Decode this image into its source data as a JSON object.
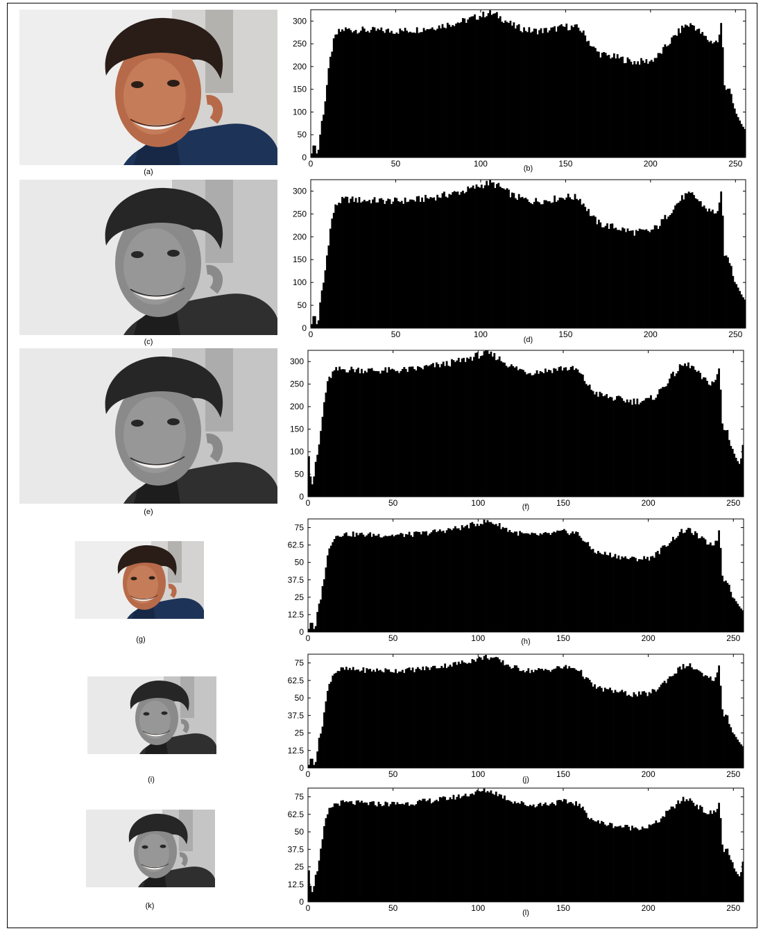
{
  "figure": {
    "panels": [
      {
        "image_label": "(a)",
        "hist_label": "(b)",
        "image_tone": "color"
      },
      {
        "image_label": "(c)",
        "hist_label": "(d)",
        "image_tone": "gray"
      },
      {
        "image_label": "(e)",
        "hist_label": "(f)",
        "image_tone": "gray"
      },
      {
        "image_label": "(g)",
        "hist_label": "(h)",
        "image_tone": "color"
      },
      {
        "image_label": "(i)",
        "hist_label": "(j)",
        "image_tone": "gray"
      },
      {
        "image_label": "(k)",
        "hist_label": "(l)",
        "image_tone": "gray"
      }
    ],
    "colors": {
      "bars": "#000000",
      "background": "#ffffff",
      "shirt": "#1e3358",
      "skin": "#b76a49",
      "hair": "#2a1d17"
    }
  },
  "chart_data": [
    {
      "type": "bar",
      "title": "(b)",
      "xlim": [
        0,
        256
      ],
      "ylim": [
        0,
        325
      ],
      "xticks": [
        "0",
        "50",
        "100",
        "150",
        "200",
        "250"
      ],
      "yticks": [
        "0",
        "50",
        "100",
        "150",
        "200",
        "250",
        "300"
      ],
      "grid": false,
      "profile": {
        "x": [
          0,
          2,
          4,
          6,
          8,
          10,
          12,
          14,
          16,
          20,
          30,
          40,
          50,
          60,
          70,
          80,
          90,
          100,
          105,
          110,
          115,
          120,
          130,
          140,
          150,
          158,
          162,
          166,
          170,
          180,
          190,
          200,
          205,
          210,
          215,
          220,
          225,
          230,
          235,
          240,
          242,
          243,
          244,
          246,
          248,
          250,
          252,
          254,
          256
        ],
        "y": [
          0,
          35,
          0,
          68,
          110,
          175,
          230,
          262,
          275,
          282,
          280,
          279,
          278,
          280,
          285,
          292,
          300,
          312,
          318,
          312,
          300,
          288,
          278,
          280,
          288,
          285,
          265,
          242,
          228,
          220,
          210,
          212,
          225,
          248,
          270,
          290,
          292,
          272,
          255,
          255,
          305,
          180,
          150,
          155,
          125,
          100,
          85,
          70,
          60
        ]
      }
    },
    {
      "type": "bar",
      "title": "(d)",
      "xlim": [
        0,
        256
      ],
      "ylim": [
        0,
        325
      ],
      "xticks": [
        "0",
        "50",
        "100",
        "150",
        "200",
        "250"
      ],
      "yticks": [
        "0",
        "50",
        "100",
        "150",
        "200",
        "250",
        "300"
      ],
      "grid": false,
      "profile": {
        "x": [
          0,
          2,
          4,
          6,
          8,
          10,
          12,
          14,
          16,
          20,
          30,
          40,
          50,
          60,
          70,
          80,
          90,
          100,
          105,
          110,
          115,
          120,
          130,
          140,
          150,
          158,
          162,
          166,
          170,
          180,
          190,
          200,
          205,
          210,
          215,
          220,
          225,
          230,
          235,
          240,
          242,
          243,
          244,
          246,
          248,
          250,
          252,
          254,
          256
        ],
        "y": [
          0,
          35,
          0,
          68,
          110,
          175,
          230,
          262,
          275,
          282,
          280,
          279,
          278,
          280,
          285,
          292,
          300,
          312,
          318,
          312,
          300,
          288,
          278,
          280,
          288,
          285,
          265,
          242,
          228,
          220,
          210,
          212,
          225,
          248,
          270,
          290,
          292,
          272,
          255,
          255,
          305,
          180,
          150,
          155,
          125,
          100,
          85,
          70,
          60
        ]
      }
    },
    {
      "type": "bar",
      "title": "(f)",
      "xlim": [
        0,
        256
      ],
      "ylim": [
        0,
        325
      ],
      "xticks": [
        "0",
        "50",
        "100",
        "150",
        "200",
        "250"
      ],
      "yticks": [
        "0",
        "50",
        "100",
        "150",
        "200",
        "250",
        "300"
      ],
      "grid": false,
      "profile": {
        "x": [
          0,
          1,
          2,
          3,
          4,
          6,
          8,
          10,
          12,
          14,
          16,
          20,
          30,
          40,
          50,
          60,
          70,
          80,
          90,
          100,
          105,
          110,
          115,
          120,
          130,
          140,
          150,
          158,
          162,
          166,
          170,
          180,
          190,
          200,
          205,
          210,
          215,
          220,
          225,
          230,
          235,
          240,
          242,
          243,
          244,
          246,
          248,
          250,
          252,
          254,
          256
        ],
        "y": [
          125,
          55,
          35,
          20,
          70,
          100,
          160,
          225,
          258,
          272,
          280,
          283,
          282,
          280,
          280,
          282,
          288,
          294,
          302,
          314,
          318,
          312,
          300,
          288,
          276,
          280,
          286,
          282,
          262,
          240,
          228,
          218,
          212,
          214,
          226,
          250,
          272,
          292,
          292,
          270,
          252,
          258,
          295,
          175,
          148,
          152,
          124,
          100,
          82,
          70,
          130
        ]
      }
    },
    {
      "type": "bar",
      "title": "(h)",
      "xlim": [
        0,
        256
      ],
      "ylim": [
        0,
        81.25
      ],
      "xticks": [
        "0",
        "50",
        "100",
        "150",
        "200",
        "250"
      ],
      "yticks": [
        "0",
        "12.5",
        "25",
        "37.5",
        "50",
        "62.5",
        "75"
      ],
      "grid": false,
      "profile": {
        "x": [
          0,
          2,
          4,
          6,
          8,
          10,
          12,
          14,
          16,
          20,
          30,
          40,
          50,
          60,
          70,
          80,
          90,
          100,
          105,
          110,
          115,
          120,
          130,
          140,
          150,
          158,
          162,
          166,
          170,
          180,
          190,
          200,
          205,
          210,
          215,
          220,
          225,
          230,
          235,
          240,
          242,
          243,
          244,
          246,
          248,
          250,
          252,
          254,
          256
        ],
        "y": [
          0,
          8.8,
          0,
          17,
          27.5,
          43.8,
          57.5,
          65.5,
          68.8,
          70.5,
          70,
          69.8,
          69.5,
          70,
          71.2,
          73,
          75,
          78,
          79.5,
          78,
          75,
          72,
          69.5,
          70,
          72,
          71.2,
          66.2,
          60.5,
          57,
          55,
          52.5,
          53,
          56.2,
          62,
          67.5,
          72.5,
          73,
          68,
          63.8,
          63.8,
          76.2,
          45,
          37.5,
          38.8,
          31.2,
          25,
          21.2,
          17.5,
          15
        ]
      }
    },
    {
      "type": "bar",
      "title": "(j)",
      "xlim": [
        0,
        256
      ],
      "ylim": [
        0,
        81.25
      ],
      "xticks": [
        "0",
        "50",
        "100",
        "150",
        "200",
        "250"
      ],
      "yticks": [
        "0",
        "12.5",
        "25",
        "37.5",
        "50",
        "62.5",
        "75"
      ],
      "grid": false,
      "profile": {
        "x": [
          0,
          2,
          4,
          6,
          8,
          10,
          12,
          14,
          16,
          20,
          30,
          40,
          50,
          60,
          70,
          80,
          90,
          100,
          105,
          110,
          115,
          120,
          130,
          140,
          150,
          158,
          162,
          166,
          170,
          180,
          190,
          200,
          205,
          210,
          215,
          220,
          225,
          230,
          235,
          240,
          242,
          243,
          244,
          246,
          248,
          250,
          252,
          254,
          256
        ],
        "y": [
          0,
          8.8,
          0,
          17,
          27.5,
          43.8,
          57.5,
          65.5,
          68.8,
          70.5,
          70,
          69.8,
          69.5,
          70,
          71.2,
          73,
          75,
          78,
          79.5,
          78,
          75,
          72,
          69.5,
          70,
          72,
          71.2,
          66.2,
          60.5,
          57,
          55,
          52.5,
          53,
          56.2,
          62,
          67.5,
          72.5,
          73,
          68,
          63.8,
          63.8,
          76.2,
          45,
          37.5,
          38.8,
          31.2,
          25,
          21.2,
          17.5,
          15
        ]
      }
    },
    {
      "type": "bar",
      "title": "(l)",
      "xlim": [
        0,
        256
      ],
      "ylim": [
        0,
        81.25
      ],
      "xticks": [
        "0",
        "50",
        "100",
        "150",
        "200",
        "250"
      ],
      "yticks": [
        "0",
        "12.5",
        "25",
        "37.5",
        "50",
        "62.5",
        "75"
      ],
      "grid": false,
      "profile": {
        "x": [
          0,
          1,
          2,
          3,
          4,
          6,
          8,
          10,
          12,
          14,
          16,
          20,
          30,
          40,
          50,
          60,
          70,
          80,
          90,
          100,
          105,
          110,
          115,
          120,
          130,
          140,
          150,
          158,
          162,
          166,
          170,
          180,
          190,
          200,
          205,
          210,
          215,
          220,
          225,
          230,
          235,
          240,
          242,
          243,
          244,
          246,
          248,
          250,
          252,
          254,
          256
        ],
        "y": [
          31,
          14,
          9,
          5,
          17.5,
          25,
          40,
          56.2,
          64.5,
          68,
          70,
          70.8,
          70.5,
          70,
          70,
          70.5,
          72,
          73.5,
          75.5,
          78.5,
          79.5,
          78,
          75,
          72,
          69,
          70,
          71.5,
          70.5,
          65.5,
          60,
          57,
          54.5,
          53,
          53.5,
          56.5,
          62.5,
          68,
          73,
          73,
          67.5,
          63,
          64.5,
          73.8,
          43.8,
          37,
          38,
          31,
          25,
          20.5,
          17.5,
          32.5
        ]
      }
    }
  ]
}
